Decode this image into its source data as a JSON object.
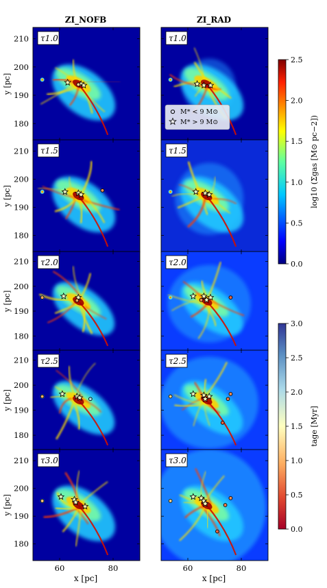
{
  "figure": {
    "columns": [
      "ZI_NOFB",
      "ZI_RAD"
    ],
    "panel_labels": [
      "τ1.0",
      "τ1.5",
      "τ2.0",
      "τ2.5",
      "τ3.0"
    ],
    "xlabel": "x [pc]",
    "ylabel": "y [pc]",
    "legend": [
      {
        "symbol": "circle",
        "label": "M* < 9 M⊙"
      },
      {
        "symbol": "star",
        "label": "M* > 9 M⊙"
      }
    ],
    "colorbars": [
      {
        "label": "log10 (Σgas [M⊙ pc−2])",
        "range": [
          0,
          2.5
        ],
        "ticks": [
          "0.0",
          "0.5",
          "1.0",
          "1.5",
          "2.0",
          "2.5"
        ],
        "colormap": "jet"
      },
      {
        "label": "tage [Myr]",
        "range": [
          0,
          3.0
        ],
        "ticks": [
          "0.0",
          "0.5",
          "1.0",
          "1.5",
          "2.0",
          "2.5",
          "3.0"
        ],
        "colormap": "RdYlBu"
      }
    ]
  },
  "chart_data": [
    {
      "type": "heatmap",
      "title": "ZI_NOFB",
      "xlabel": "x [pc]",
      "ylabel": "y [pc]",
      "xlim": [
        50,
        90
      ],
      "ylim": [
        174,
        214
      ],
      "xticks": [
        60,
        80
      ],
      "yticks": [
        180,
        190,
        200,
        210
      ],
      "panels": [
        {
          "label": "τ1.0",
          "stars": [
            {
              "x": 63,
              "y": 194.5,
              "age": 1.5
            },
            {
              "x": 68,
              "y": 194,
              "age": 1.5
            },
            {
              "x": 69,
              "y": 193.5,
              "age": 1.5
            }
          ],
          "sinks": [
            {
              "x": 67,
              "y": 193.8,
              "age": 1.2
            }
          ]
        },
        {
          "label": "τ1.5",
          "stars": [
            {
              "x": 62,
              "y": 195.5,
              "age": 1.6
            },
            {
              "x": 67,
              "y": 195,
              "age": 1.5
            },
            {
              "x": 68,
              "y": 194.5,
              "age": 1.5
            }
          ],
          "sinks": [
            {
              "x": 76,
              "y": 196,
              "age": 0.8
            }
          ]
        },
        {
          "label": "τ2.0",
          "stars": [
            {
              "x": 61.5,
              "y": 196,
              "age": 1.6
            },
            {
              "x": 67,
              "y": 195.5,
              "age": 1.5
            }
          ],
          "sinks": [
            {
              "x": 53.5,
              "y": 195.5,
              "age": 0.9
            },
            {
              "x": 66.5,
              "y": 194.3,
              "age": 0.9
            }
          ]
        },
        {
          "label": "τ2.5",
          "stars": [
            {
              "x": 61,
              "y": 196.5,
              "age": 1.6
            },
            {
              "x": 66.5,
              "y": 195.5,
              "age": 1.5
            },
            {
              "x": 67.5,
              "y": 195,
              "age": 1.5
            }
          ],
          "sinks": [
            {
              "x": 53.5,
              "y": 195.5,
              "age": 1.0
            },
            {
              "x": 71.5,
              "y": 194.5,
              "age": 2.0
            }
          ]
        },
        {
          "label": "τ3.0",
          "stars": [
            {
              "x": 60.5,
              "y": 197,
              "age": 1.6
            },
            {
              "x": 65.5,
              "y": 196,
              "age": 1.5
            },
            {
              "x": 66,
              "y": 195,
              "age": 1.5
            },
            {
              "x": 69.5,
              "y": 193.5,
              "age": 1.4
            }
          ],
          "sinks": [
            {
              "x": 53.5,
              "y": 195.5,
              "age": 1.1
            }
          ]
        }
      ]
    },
    {
      "type": "heatmap",
      "title": "ZI_RAD",
      "xlabel": "x [pc]",
      "ylabel": "",
      "xlim": [
        50,
        90
      ],
      "ylim": [
        174,
        214
      ],
      "xticks": [
        60,
        80
      ],
      "yticks": [
        180,
        190,
        200,
        210
      ],
      "panels": [
        {
          "label": "τ1.0",
          "stars": [
            {
              "x": 63.5,
              "y": 194,
              "age": 1.5
            },
            {
              "x": 66,
              "y": 193.5,
              "age": 1.5
            },
            {
              "x": 68.5,
              "y": 193.5,
              "age": 1.5
            }
          ],
          "sinks": []
        },
        {
          "label": "τ1.5",
          "stars": [
            {
              "x": 63,
              "y": 195.5,
              "age": 1.6
            },
            {
              "x": 66.5,
              "y": 195,
              "age": 1.5
            },
            {
              "x": 68,
              "y": 194.5,
              "age": 1.5
            }
          ],
          "sinks": []
        },
        {
          "label": "τ2.0",
          "stars": [
            {
              "x": 62,
              "y": 196,
              "age": 1.6
            },
            {
              "x": 66,
              "y": 196,
              "age": 1.5
            },
            {
              "x": 67,
              "y": 194.5,
              "age": 1.5
            },
            {
              "x": 68.5,
              "y": 195.5,
              "age": 1.5
            }
          ],
          "sinks": [
            {
              "x": 76,
              "y": 195.5,
              "age": 0.6
            },
            {
              "x": 65,
              "y": 194.5,
              "age": 0.8
            }
          ]
        },
        {
          "label": "τ2.5",
          "stars": [
            {
              "x": 62,
              "y": 196.5,
              "age": 1.6
            },
            {
              "x": 66,
              "y": 196,
              "age": 1.5
            },
            {
              "x": 66.5,
              "y": 194.5,
              "age": 1.5
            },
            {
              "x": 68,
              "y": 195.5,
              "age": 1.5
            }
          ],
          "sinks": [
            {
              "x": 53.5,
              "y": 195.5,
              "age": 1.2
            },
            {
              "x": 76,
              "y": 196.5,
              "age": 0.8
            },
            {
              "x": 75,
              "y": 194.5,
              "age": 0.7
            },
            {
              "x": 73,
              "y": 185,
              "age": 0.6
            }
          ]
        },
        {
          "label": "τ3.0",
          "stars": [
            {
              "x": 62,
              "y": 197,
              "age": 1.6
            },
            {
              "x": 65,
              "y": 196.5,
              "age": 1.5
            },
            {
              "x": 66,
              "y": 195.5,
              "age": 1.5
            },
            {
              "x": 66.5,
              "y": 194.5,
              "age": 1.5
            }
          ],
          "sinks": [
            {
              "x": 53.5,
              "y": 195.5,
              "age": 1.2
            },
            {
              "x": 76,
              "y": 196.5,
              "age": 0.8
            },
            {
              "x": 74,
              "y": 194,
              "age": 0.7
            },
            {
              "x": 71,
              "y": 184.5,
              "age": 0.6
            }
          ]
        }
      ]
    }
  ]
}
